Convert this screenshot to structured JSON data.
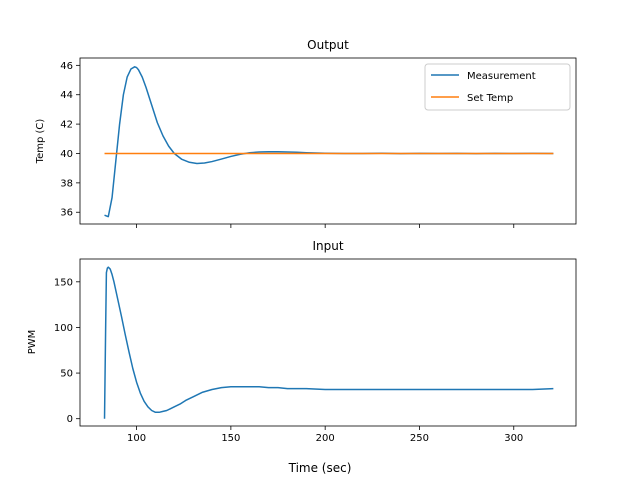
{
  "chart_data": [
    {
      "type": "line",
      "title": "Output",
      "ylabel": "Temp (C)",
      "xlabel": "",
      "xlim": [
        70,
        333
      ],
      "ylim": [
        35.2,
        46.5
      ],
      "xticks": [
        100,
        150,
        200,
        250,
        300
      ],
      "yticks": [
        36,
        38,
        40,
        42,
        44,
        46
      ],
      "xticklabels_visible": false,
      "legend": "top-right",
      "series": [
        {
          "name": "Measurement",
          "color": "#1f77b4",
          "x": [
            83,
            85,
            87,
            89,
            91,
            93,
            95,
            97,
            99,
            100,
            101,
            103,
            105,
            108,
            111,
            114,
            117,
            120,
            124,
            128,
            132,
            136,
            140,
            145,
            150,
            155,
            160,
            165,
            170,
            175,
            180,
            185,
            190,
            195,
            200,
            210,
            220,
            230,
            240,
            250,
            260,
            270,
            280,
            290,
            300,
            310,
            321
          ],
          "y": [
            35.8,
            35.7,
            37.0,
            39.5,
            42.0,
            44.0,
            45.2,
            45.75,
            45.9,
            45.85,
            45.7,
            45.2,
            44.5,
            43.3,
            42.1,
            41.2,
            40.5,
            40.0,
            39.6,
            39.4,
            39.32,
            39.35,
            39.45,
            39.62,
            39.8,
            39.95,
            40.05,
            40.1,
            40.12,
            40.12,
            40.1,
            40.08,
            40.05,
            40.03,
            40.02,
            40.0,
            40.0,
            40.02,
            39.99,
            40.01,
            40.0,
            40.01,
            39.99,
            40.01,
            40.0,
            40.01,
            40.0
          ]
        },
        {
          "name": "Set Temp",
          "color": "#ff7f0e",
          "x": [
            83,
            321
          ],
          "y": [
            40,
            40
          ]
        }
      ]
    },
    {
      "type": "line",
      "title": "Input",
      "ylabel": "PWM",
      "xlabel": "Time (sec)",
      "xlim": [
        70,
        333
      ],
      "ylim": [
        -8,
        175
      ],
      "xticks": [
        100,
        150,
        200,
        250,
        300
      ],
      "yticks": [
        0,
        50,
        100,
        150
      ],
      "xticklabels": [
        "100",
        "150",
        "200",
        "250",
        "300"
      ],
      "yticklabels": [
        "0",
        "50",
        "100",
        "150"
      ],
      "series": [
        {
          "name": "",
          "color": "#1f77b4",
          "x": [
            83,
            83.6,
            84,
            84.5,
            85,
            86,
            87,
            88,
            90,
            92,
            94,
            96,
            98,
            100,
            102,
            104,
            106,
            108,
            110,
            112,
            114,
            116,
            118,
            120,
            123,
            126,
            130,
            135,
            140,
            145,
            150,
            155,
            160,
            165,
            170,
            175,
            180,
            190,
            200,
            210,
            220,
            230,
            240,
            250,
            260,
            270,
            280,
            290,
            300,
            310,
            321
          ],
          "y": [
            0,
            100,
            160,
            165,
            166,
            164,
            158,
            150,
            131,
            112,
            92,
            73,
            55,
            40,
            28,
            19,
            13,
            9,
            7,
            7,
            8,
            9,
            11,
            13,
            16,
            20,
            24,
            29,
            32,
            34,
            35,
            35,
            35,
            35,
            34,
            34,
            33,
            33,
            32,
            32,
            32,
            32,
            32,
            32,
            32,
            32,
            32,
            32,
            32,
            32,
            33
          ]
        }
      ]
    }
  ]
}
